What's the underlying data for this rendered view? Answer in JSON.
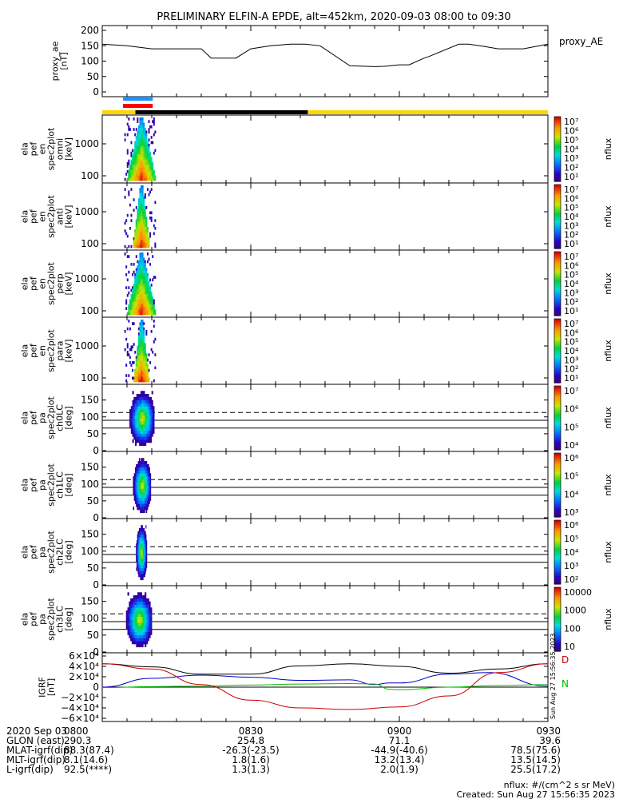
{
  "title": "PRELIMINARY ELFIN-A EPDE, alt=452km, 2020-09-03 08:00 to 09:30",
  "chart_data": [
    {
      "type": "line",
      "panel": "proxy_ae",
      "ylabel": [
        "proxy_ae",
        "[nT]"
      ],
      "series_label": "proxy_AE",
      "yticks": [
        "200",
        "150",
        "100",
        "50",
        "0"
      ],
      "ylim": [
        0,
        200
      ],
      "x_minutes": [
        0,
        5,
        10,
        20,
        22,
        27,
        30,
        34,
        38,
        41,
        44,
        50,
        55,
        57,
        60,
        62,
        65,
        66,
        72,
        74,
        77,
        80,
        85,
        90
      ],
      "values": [
        155,
        150,
        140,
        140,
        110,
        110,
        140,
        150,
        155,
        155,
        150,
        85,
        82,
        83,
        88,
        88,
        110,
        115,
        155,
        155,
        148,
        140,
        140,
        155
      ]
    },
    {
      "type": "heatmap",
      "panel": "energy spectrogram omni",
      "ylabel": [
        "ela",
        "pef",
        "en",
        "spec2plot",
        "omni",
        "[keV]"
      ],
      "yticks": [
        "1000",
        "100"
      ],
      "colorbar_label": "nflux",
      "colorbar_ticks": [
        "10⁷",
        "10⁶",
        "10⁵",
        "10⁴",
        "10³",
        "10²",
        "10¹"
      ]
    },
    {
      "type": "heatmap",
      "panel": "energy spectrogram anti",
      "ylabel": [
        "ela",
        "pef",
        "en",
        "spec2plot",
        "anti",
        "[keV]"
      ],
      "yticks": [
        "1000",
        "100"
      ],
      "colorbar_label": "nflux",
      "colorbar_ticks": [
        "10⁷",
        "10⁶",
        "10⁵",
        "10⁴",
        "10³",
        "10²",
        "10¹"
      ]
    },
    {
      "type": "heatmap",
      "panel": "energy spectrogram perp",
      "ylabel": [
        "ela",
        "pef",
        "en",
        "spec2plot",
        "perp",
        "[keV]"
      ],
      "yticks": [
        "1000",
        "100"
      ],
      "colorbar_label": "nflux",
      "colorbar_ticks": [
        "10⁷",
        "10⁶",
        "10⁵",
        "10⁴",
        "10³",
        "10²",
        "10¹"
      ]
    },
    {
      "type": "heatmap",
      "panel": "energy spectrogram para",
      "ylabel": [
        "ela",
        "pef",
        "en",
        "spec2plot",
        "para",
        "[keV]"
      ],
      "yticks": [
        "1000",
        "100"
      ],
      "colorbar_label": "nflux",
      "colorbar_ticks": [
        "10⁷",
        "10⁶",
        "10⁵",
        "10⁴",
        "10³",
        "10²",
        "10¹"
      ]
    },
    {
      "type": "heatmap",
      "panel": "pitch angle ch0LC",
      "ylabel": [
        "ela",
        "pef",
        "pa",
        "spec2plot",
        "ch0LC",
        "[deg]"
      ],
      "yticks": [
        "150",
        "100",
        "50",
        "0"
      ],
      "colorbar_label": "nflux",
      "colorbar_ticks": [
        "10⁷",
        "10⁶",
        "10⁵",
        "10⁴"
      ]
    },
    {
      "type": "heatmap",
      "panel": "pitch angle ch1LC",
      "ylabel": [
        "ela",
        "pef",
        "pa",
        "spec2plot",
        "ch1LC",
        "[deg]"
      ],
      "yticks": [
        "150",
        "100",
        "50",
        "0"
      ],
      "colorbar_label": "nflux",
      "colorbar_ticks": [
        "10⁶",
        "10⁵",
        "10⁴",
        "10³"
      ]
    },
    {
      "type": "heatmap",
      "panel": "pitch angle ch2LC",
      "ylabel": [
        "ela",
        "pef",
        "pa",
        "spec2plot",
        "ch2LC",
        "[deg]"
      ],
      "yticks": [
        "150",
        "100",
        "50",
        "0"
      ],
      "colorbar_label": "nflux",
      "colorbar_ticks": [
        "10⁶",
        "10⁵",
        "10⁴",
        "10³",
        "10²"
      ]
    },
    {
      "type": "heatmap",
      "panel": "pitch angle ch3LC",
      "ylabel": [
        "ela",
        "pef",
        "pa",
        "spec2plot",
        "ch3LC",
        "[deg]"
      ],
      "yticks": [
        "150",
        "100",
        "50",
        "0"
      ],
      "colorbar_label": "nflux",
      "colorbar_ticks": [
        "10000",
        "1000",
        "100",
        "10"
      ]
    },
    {
      "type": "line",
      "panel": "IGRF",
      "ylabel": [
        "IGRF",
        "[nT]"
      ],
      "yticks": [
        "6×10⁴",
        "4×10⁴",
        "2×10⁴",
        "0",
        "−2×10⁴",
        "−4×10⁴",
        "−6×10⁴"
      ],
      "ylim": [
        -60000,
        60000
      ],
      "legend": [
        "D",
        "N"
      ],
      "series": [
        {
          "color": "#000000",
          "x_minutes": [
            0,
            10,
            20,
            30,
            40,
            50,
            60,
            70,
            80,
            90
          ],
          "values": [
            45000,
            39000,
            25000,
            25000,
            41000,
            45000,
            40000,
            27000,
            35000,
            45000
          ]
        },
        {
          "color": "#0000cc",
          "x_minutes": [
            0,
            10,
            20,
            30,
            40,
            50,
            55,
            58,
            60,
            70,
            78,
            90
          ],
          "values": [
            0,
            17000,
            23000,
            19000,
            13000,
            14000,
            5000,
            8000,
            8000,
            25000,
            28000,
            2000
          ]
        },
        {
          "color": "#00bb00",
          "x_minutes": [
            0,
            10,
            20,
            30,
            40,
            50,
            55,
            58,
            60,
            70,
            80,
            90
          ],
          "values": [
            -1000,
            1000,
            2000,
            4000,
            6000,
            7000,
            6000,
            -4000,
            -5000,
            0,
            3000,
            5000
          ]
        },
        {
          "color": "#cc0000",
          "x_minutes": [
            0,
            10,
            20,
            30,
            40,
            50,
            60,
            70,
            80,
            90
          ],
          "values": [
            45000,
            35000,
            5000,
            -25000,
            -40000,
            -43000,
            -38000,
            -17000,
            28000,
            45000
          ]
        }
      ]
    }
  ],
  "xaxis": {
    "tick_labels": [
      "0800",
      "0830",
      "0900",
      "0930"
    ],
    "rows": [
      {
        "label": "2020 Sep 03",
        "values": [
          "0800",
          "0830",
          "0900",
          "0930"
        ]
      },
      {
        "label": "GLON (east)",
        "values": [
          "290.3",
          "254.8",
          "71.1",
          "39.6"
        ]
      },
      {
        "label": "MLAT-igrf(dip)",
        "values": [
          "88.3(87.4)",
          "-26.3(-23.5)",
          "-44.9(-40.6)",
          "78.5(75.6)"
        ]
      },
      {
        "label": "MLT-igrf(dip)",
        "values": [
          "8.1(14.6)",
          "1.8(1.6)",
          "13.2(13.4)",
          "13.5(14.5)"
        ]
      },
      {
        "label": "L-igrf(dip)",
        "values": [
          "92.5(****)",
          "1.3(1.3)",
          "2.0(1.9)",
          "25.5(17.2)"
        ]
      }
    ]
  },
  "footer": {
    "units": "nflux: #/(cm^2 s sr MeV)",
    "created": "Created: Sun Aug 27 15:56:35 2023",
    "side_stamp": "Sun Aug 27 15:56:35 2023"
  },
  "colors": {
    "indicator_blue": "#1e90ff",
    "indicator_red": "#ff0000",
    "bar_black": "#000000",
    "bar_yellow": "#ffd700"
  }
}
